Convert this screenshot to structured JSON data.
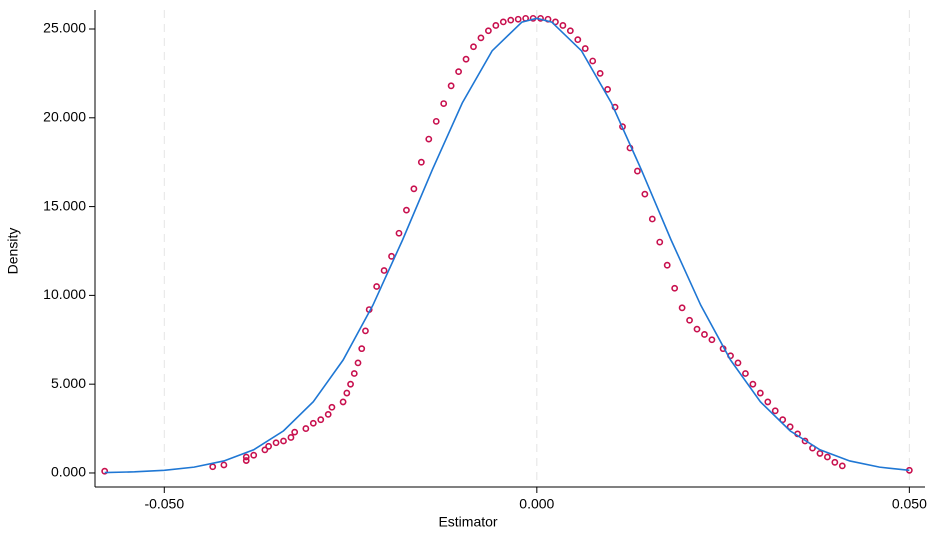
{
  "chart_data": {
    "type": "scatter",
    "xlabel": "Estimator",
    "ylabel": "Density",
    "xlim": [
      -0.0593,
      0.0521
    ],
    "ylim": [
      -0.79,
      26.07
    ],
    "xticks": [
      {
        "value": -0.05,
        "label": "-0.050"
      },
      {
        "value": 0,
        "label": "0.000"
      },
      {
        "value": 0.05,
        "label": "0.050"
      }
    ],
    "yticks": [
      {
        "value": 0,
        "label": "0.000"
      },
      {
        "value": 5,
        "label": "5.000"
      },
      {
        "value": 10,
        "label": "10.000"
      },
      {
        "value": 15,
        "label": "15.000"
      },
      {
        "value": 20,
        "label": "20.000"
      },
      {
        "value": 25,
        "label": "25.000"
      }
    ],
    "grid": "x",
    "series": [
      {
        "type": "scatter",
        "color": "#c8104e",
        "x": [
          -0.058,
          -0.0435,
          -0.042,
          -0.039,
          -0.039,
          -0.038,
          -0.0365,
          -0.036,
          -0.035,
          -0.034,
          -0.033,
          -0.0325,
          -0.031,
          -0.03,
          -0.029,
          -0.028,
          -0.0275,
          -0.026,
          -0.0255,
          -0.025,
          -0.0245,
          -0.024,
          -0.0235,
          -0.023,
          -0.0225,
          -0.0215,
          -0.0205,
          -0.0195,
          -0.0185,
          -0.0175,
          -0.0165,
          -0.0155,
          -0.0145,
          -0.0135,
          -0.0125,
          -0.0115,
          -0.0105,
          -0.0095,
          -0.0085,
          -0.0075,
          -0.0065,
          -0.0055,
          -0.0045,
          -0.0035,
          -0.0025,
          -0.0015,
          -0.0005,
          0.0005,
          0.0015,
          0.0025,
          0.0035,
          0.0045,
          0.0055,
          0.0065,
          0.0075,
          0.0085,
          0.0095,
          0.0105,
          0.0115,
          0.0125,
          0.0135,
          0.0145,
          0.0155,
          0.0165,
          0.0175,
          0.0185,
          0.0195,
          0.0205,
          0.0215,
          0.0225,
          0.0235,
          0.025,
          0.026,
          0.027,
          0.028,
          0.029,
          0.03,
          0.031,
          0.032,
          0.033,
          0.034,
          0.035,
          0.036,
          0.037,
          0.038,
          0.039,
          0.04,
          0.041,
          0.05
        ],
        "values": [
          0.1,
          0.35,
          0.45,
          0.7,
          0.9,
          1.0,
          1.3,
          1.5,
          1.7,
          1.8,
          2.0,
          2.3,
          2.5,
          2.8,
          3.0,
          3.3,
          3.7,
          4.0,
          4.5,
          5.0,
          5.6,
          6.2,
          7.0,
          8.0,
          9.2,
          10.5,
          11.4,
          12.2,
          13.5,
          14.8,
          16.0,
          17.5,
          18.8,
          19.8,
          20.8,
          21.8,
          22.6,
          23.3,
          24.0,
          24.5,
          24.9,
          25.2,
          25.4,
          25.5,
          25.55,
          25.6,
          25.6,
          25.6,
          25.55,
          25.4,
          25.2,
          24.9,
          24.4,
          23.9,
          23.2,
          22.5,
          21.6,
          20.6,
          19.5,
          18.3,
          17.0,
          15.7,
          14.3,
          13.0,
          11.7,
          10.4,
          9.3,
          8.6,
          8.1,
          7.8,
          7.5,
          7.0,
          6.6,
          6.2,
          5.6,
          5.0,
          4.5,
          4.0,
          3.5,
          3.0,
          2.6,
          2.2,
          1.8,
          1.4,
          1.1,
          0.9,
          0.6,
          0.4,
          0.15
        ]
      },
      {
        "type": "line",
        "color": "#1f77d4",
        "x": [
          -0.058,
          -0.054,
          -0.05,
          -0.046,
          -0.042,
          -0.038,
          -0.034,
          -0.03,
          -0.026,
          -0.022,
          -0.018,
          -0.014,
          -0.01,
          -0.006,
          -0.002,
          0,
          0.002,
          0.006,
          0.01,
          0.014,
          0.018,
          0.022,
          0.026,
          0.03,
          0.034,
          0.038,
          0.042,
          0.046,
          0.05
        ],
        "values": [
          0.025,
          0.063,
          0.149,
          0.328,
          0.677,
          1.308,
          2.37,
          4.01,
          6.36,
          9.45,
          13.14,
          17.1,
          20.84,
          23.77,
          25.39,
          25.6,
          25.39,
          23.77,
          20.84,
          17.1,
          13.14,
          9.45,
          6.36,
          4.01,
          2.37,
          1.308,
          0.677,
          0.328,
          0.149
        ]
      }
    ]
  }
}
